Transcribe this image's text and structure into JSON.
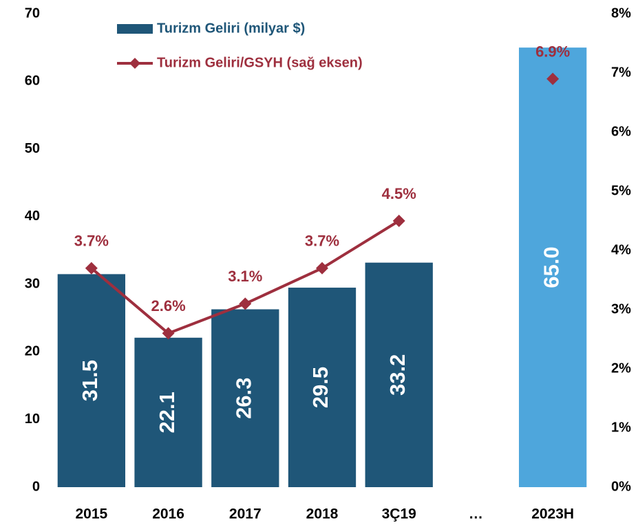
{
  "chart_data": {
    "type": "bar_line",
    "categories": [
      "2015",
      "2016",
      "2017",
      "2018",
      "3Ç19",
      "…",
      "2023H"
    ],
    "series": [
      {
        "name": "Turizm Geliri (milyar $)",
        "type": "bar",
        "color": "#1f5678",
        "point_colors": [
          "#1f5678",
          "#1f5678",
          "#1f5678",
          "#1f5678",
          "#1f5678",
          null,
          "#4ea6dc"
        ],
        "values": [
          31.5,
          22.1,
          26.3,
          29.5,
          33.2,
          null,
          65.0
        ],
        "value_labels": [
          "31.5",
          "22.1",
          "26.3",
          "29.5",
          "33.2",
          null,
          "65.0"
        ]
      },
      {
        "name": "Turizm Geliri/GSYH (sağ eksen)",
        "type": "line",
        "axis": "y2",
        "color": "#9e2f3e",
        "values": [
          3.7,
          2.6,
          3.1,
          3.7,
          4.5,
          null,
          6.9
        ],
        "value_labels": [
          "3.7%",
          "2.6%",
          "3.1%",
          "3.7%",
          "4.5%",
          null,
          "6.9%"
        ]
      }
    ],
    "ylim": [
      0,
      70
    ],
    "yticks": [
      0,
      10,
      20,
      30,
      40,
      50,
      60,
      70
    ],
    "y2lim": [
      0,
      8
    ],
    "y2ticks": [
      {
        "value": 0,
        "label": "0%"
      },
      {
        "value": 1,
        "label": "1%"
      },
      {
        "value": 2,
        "label": "2%"
      },
      {
        "value": 3,
        "label": "3%"
      },
      {
        "value": 4,
        "label": "4%"
      },
      {
        "value": 5,
        "label": "5%"
      },
      {
        "value": 6,
        "label": "6%"
      },
      {
        "value": 7,
        "label": "7%"
      },
      {
        "value": 8,
        "label": "8%"
      }
    ],
    "grid": false,
    "legend": "upper left"
  }
}
